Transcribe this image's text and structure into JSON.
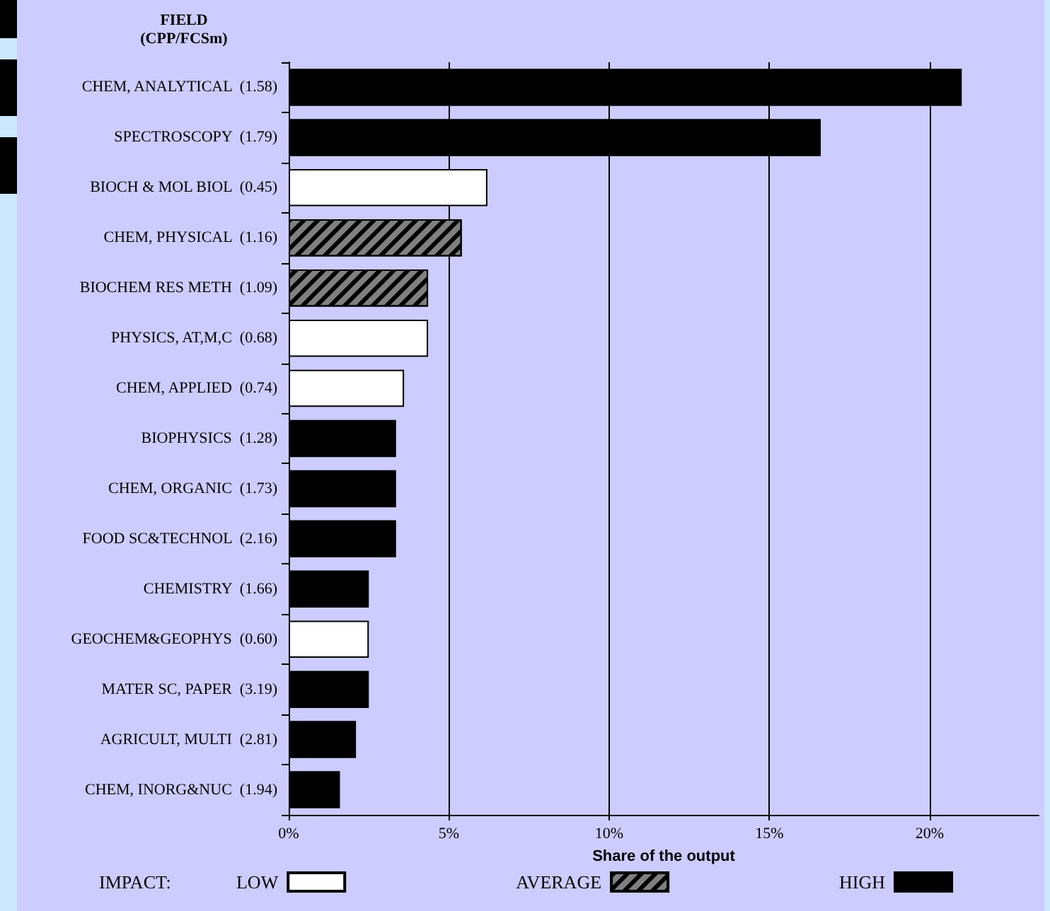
{
  "chart_data": {
    "type": "bar",
    "orientation": "horizontal",
    "stacked": true,
    "ylabel": "FIELD\n(CPP/FCSm)",
    "xlabel": "Share of the output",
    "legend_title": "IMPACT:",
    "legend": "bottom",
    "grid": "x",
    "categories": [
      "CHEM, ANALYTICAL  (1.58)",
      "SPECTROSCOPY  (1.79)",
      "BIOCH & MOL BIOL  (0.45)",
      "CHEM, PHYSICAL  (1.16)",
      "BIOCHEM RES METH  (1.09)",
      "PHYSICS, AT,M,C  (0.68)",
      "CHEM, APPLIED  (0.74)",
      "BIOPHYSICS  (1.28)",
      "CHEM, ORGANIC  (1.73)",
      "FOOD SC&TECHNOL  (2.16)",
      "CHEMISTRY  (1.66)",
      "GEOCHEM&GEOPHYS  (0.60)",
      "MATER SC, PAPER  (3.19)",
      "AGRICULT, MULTI  (2.81)",
      "CHEM, INORG&NUC  (1.94)"
    ],
    "series": [
      {
        "name": "LOW",
        "color": "#ffffff",
        "values": [
          null,
          null,
          6.2,
          null,
          null,
          4.35,
          3.6,
          null,
          null,
          null,
          null,
          2.5,
          null,
          null,
          null
        ]
      },
      {
        "name": "AVERAGE",
        "color": "#808080",
        "values": [
          null,
          null,
          null,
          5.4,
          4.35,
          null,
          null,
          null,
          null,
          null,
          null,
          null,
          null,
          null,
          null
        ]
      },
      {
        "name": "HIGH",
        "color": "#000000",
        "values": [
          21.0,
          16.6,
          null,
          null,
          null,
          null,
          null,
          3.35,
          3.35,
          3.35,
          2.5,
          null,
          2.5,
          2.1,
          1.6
        ]
      }
    ],
    "xlim": [
      0,
      23.4
    ],
    "xticks": [
      {
        "value": 0,
        "label": "0%"
      },
      {
        "value": 5,
        "label": "5%"
      },
      {
        "value": 10,
        "label": "10%"
      },
      {
        "value": 15,
        "label": "15%"
      },
      {
        "value": 20,
        "label": "20%"
      }
    ]
  }
}
